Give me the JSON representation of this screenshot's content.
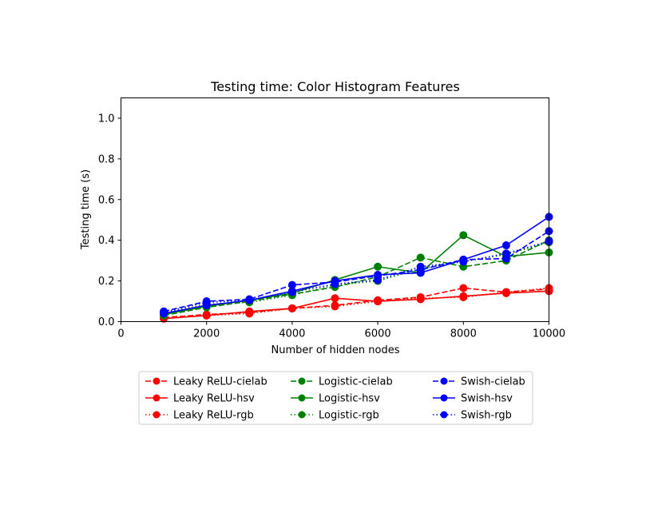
{
  "chart_data": {
    "type": "line",
    "title": "Testing time: Color Histogram Features",
    "xlabel": "Number of hidden nodes",
    "ylabel": "Testing time (s)",
    "xlim": [
      0,
      10000
    ],
    "ylim": [
      0,
      1.1
    ],
    "xticks": [
      0,
      2000,
      4000,
      6000,
      8000,
      10000
    ],
    "yticks": [
      0.0,
      0.2,
      0.4,
      0.6,
      0.8,
      1.0
    ],
    "xtick_labels": [
      "0",
      "2000",
      "4000",
      "6000",
      "8000",
      "10000"
    ],
    "ytick_labels": [
      "0.0",
      "0.2",
      "0.4",
      "0.6",
      "0.8",
      "1.0"
    ],
    "grid": false,
    "legend_position": "bottom-center",
    "x": [
      1000,
      2000,
      3000,
      4000,
      5000,
      6000,
      7000,
      8000,
      9000,
      10000
    ],
    "series": [
      {
        "name": "Leaky ReLU-cielab",
        "color": "#ff0000",
        "linestyle": "dashed",
        "values": [
          0.02,
          0.035,
          0.045,
          0.065,
          0.08,
          0.105,
          0.12,
          0.165,
          0.145,
          0.16
        ]
      },
      {
        "name": "Leaky ReLU-hsv",
        "color": "#ff0000",
        "linestyle": "solid",
        "values": [
          0.015,
          0.03,
          0.05,
          0.065,
          0.115,
          0.1,
          0.11,
          0.125,
          0.14,
          0.15
        ]
      },
      {
        "name": "Leaky ReLU-rgb",
        "color": "#ff0000",
        "linestyle": "dotted",
        "values": [
          0.015,
          0.03,
          0.04,
          0.065,
          0.075,
          0.1,
          0.115,
          0.12,
          0.145,
          0.165
        ]
      },
      {
        "name": "Logistic-cielab",
        "color": "#008000",
        "linestyle": "dashed",
        "values": [
          0.03,
          0.07,
          0.1,
          0.135,
          0.17,
          0.22,
          0.315,
          0.27,
          0.3,
          0.4
        ]
      },
      {
        "name": "Logistic-hsv",
        "color": "#008000",
        "linestyle": "solid",
        "values": [
          0.035,
          0.075,
          0.105,
          0.14,
          0.205,
          0.27,
          0.24,
          0.425,
          0.32,
          0.34
        ]
      },
      {
        "name": "Logistic-rgb",
        "color": "#008000",
        "linestyle": "dotted",
        "values": [
          0.04,
          0.085,
          0.095,
          0.13,
          0.18,
          0.2,
          0.26,
          0.295,
          0.33,
          0.39
        ]
      },
      {
        "name": "Swish-cielab",
        "color": "#0000ff",
        "linestyle": "dashed",
        "values": [
          0.05,
          0.1,
          0.11,
          0.18,
          0.195,
          0.225,
          0.255,
          0.305,
          0.31,
          0.445
        ]
      },
      {
        "name": "Swish-hsv",
        "color": "#0000ff",
        "linestyle": "solid",
        "values": [
          0.04,
          0.08,
          0.105,
          0.15,
          0.2,
          0.23,
          0.24,
          0.305,
          0.375,
          0.515
        ]
      },
      {
        "name": "Swish-rgb",
        "color": "#0000ff",
        "linestyle": "dotted",
        "values": [
          0.045,
          0.095,
          0.105,
          0.145,
          0.185,
          0.205,
          0.27,
          0.295,
          0.335,
          0.395
        ]
      }
    ]
  }
}
